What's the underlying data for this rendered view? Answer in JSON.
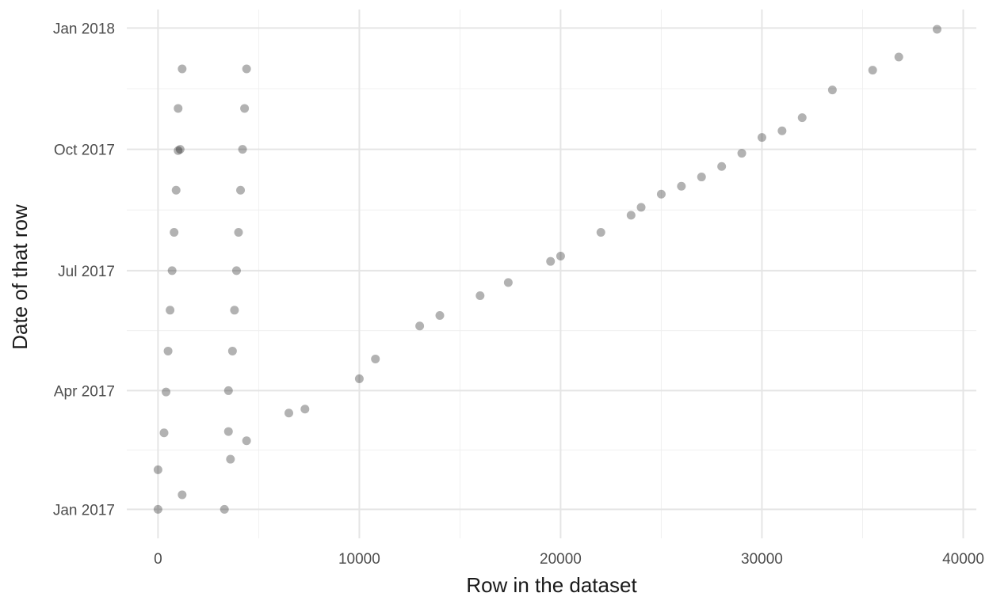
{
  "chart_data": {
    "type": "scatter",
    "xlabel": "Row in the dataset",
    "ylabel": "Date of that row",
    "xlim": [
      -1550,
      40650
    ],
    "ylim": [
      "2016-12-10",
      "2018-01-15"
    ],
    "x_ticks": [
      0,
      10000,
      20000,
      30000,
      40000
    ],
    "x_tick_labels": [
      "0",
      "10000",
      "20000",
      "30000",
      "40000"
    ],
    "y_ticks": [
      "2017-01-01",
      "2017-04-01",
      "2017-07-01",
      "2017-10-01",
      "2018-01-01"
    ],
    "y_tick_labels": [
      "Jan 2017",
      "Apr 2017",
      "Jul 2017",
      "Oct 2017",
      "Jan 2018"
    ],
    "grid": true,
    "legend": "none",
    "point_color": "#000000",
    "point_opacity": 0.3,
    "note": "x = row index, y = date; points approximated from the figure",
    "points_diagonal": [
      [
        1200,
        "2017-01-12"
      ],
      [
        3600,
        "2017-02-08"
      ],
      [
        4400,
        "2017-02-22"
      ],
      [
        6500,
        "2017-03-15"
      ],
      [
        7300,
        "2017-03-18"
      ],
      [
        10000,
        "2017-04-10"
      ],
      [
        10800,
        "2017-04-25"
      ],
      [
        13000,
        "2017-05-20"
      ],
      [
        14000,
        "2017-05-28"
      ],
      [
        16000,
        "2017-06-12"
      ],
      [
        17400,
        "2017-06-22"
      ],
      [
        19500,
        "2017-07-08"
      ],
      [
        20000,
        "2017-07-12"
      ],
      [
        22000,
        "2017-07-30"
      ],
      [
        23500,
        "2017-08-12"
      ],
      [
        24000,
        "2017-08-18"
      ],
      [
        25000,
        "2017-08-28"
      ],
      [
        26000,
        "2017-09-03"
      ],
      [
        27000,
        "2017-09-10"
      ],
      [
        28000,
        "2017-09-18"
      ],
      [
        29000,
        "2017-09-28"
      ],
      [
        30000,
        "2017-10-10"
      ],
      [
        31000,
        "2017-10-15"
      ],
      [
        32000,
        "2017-10-25"
      ],
      [
        33500,
        "2017-11-15"
      ],
      [
        35500,
        "2017-11-30"
      ],
      [
        36800,
        "2017-12-10"
      ],
      [
        38700,
        "2017-12-31"
      ]
    ],
    "points_columns": [
      {
        "x": 0,
        "dates": [
          "2017-01-01",
          "2017-01-31"
        ]
      },
      {
        "x": 300,
        "dates": [
          "2017-02-28"
        ]
      },
      {
        "x": 400,
        "dates": [
          "2017-03-31"
        ]
      },
      {
        "x": 500,
        "dates": [
          "2017-05-01"
        ]
      },
      {
        "x": 600,
        "dates": [
          "2017-06-01"
        ]
      },
      {
        "x": 700,
        "dates": [
          "2017-07-01"
        ]
      },
      {
        "x": 800,
        "dates": [
          "2017-07-30"
        ]
      },
      {
        "x": 900,
        "dates": [
          "2017-08-31"
        ]
      },
      {
        "x": 1000,
        "dates": [
          "2017-09-30",
          "2017-11-01"
        ]
      },
      {
        "x": 1100,
        "dates": [
          "2017-10-01"
        ]
      },
      {
        "x": 1200,
        "dates": [
          "2017-12-01"
        ]
      },
      {
        "x": 3300,
        "dates": [
          "2017-01-01"
        ]
      },
      {
        "x": 3500,
        "dates": [
          "2017-03-01",
          "2017-04-01"
        ]
      },
      {
        "x": 3700,
        "dates": [
          "2017-05-01"
        ]
      },
      {
        "x": 3800,
        "dates": [
          "2017-06-01"
        ]
      },
      {
        "x": 3900,
        "dates": [
          "2017-07-01"
        ]
      },
      {
        "x": 4000,
        "dates": [
          "2017-07-30"
        ]
      },
      {
        "x": 4100,
        "dates": [
          "2017-08-31"
        ]
      },
      {
        "x": 4200,
        "dates": [
          "2017-10-01"
        ]
      },
      {
        "x": 4300,
        "dates": [
          "2017-11-01"
        ]
      },
      {
        "x": 4400,
        "dates": [
          "2017-12-01"
        ]
      }
    ]
  }
}
